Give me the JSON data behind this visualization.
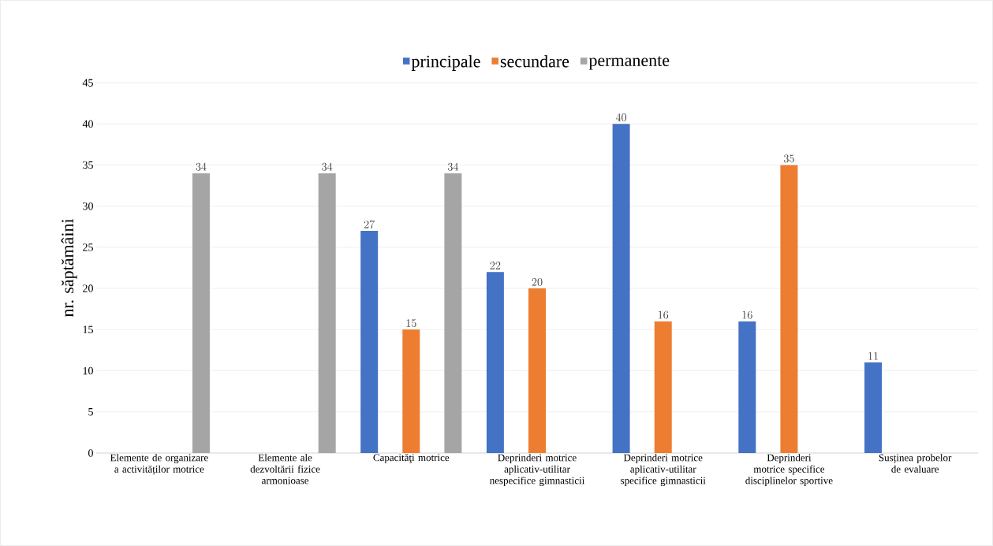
{
  "chart_data": {
    "type": "bar",
    "ylabel": "nr. săptămâini",
    "categories": [
      "Elemente de organizare a activităților motrice",
      "Elemente ale dezvoltării fizice armonioase",
      "Capacităţi motrice",
      "Deprinderi motrice aplicativ-utilitar nespecifice gimnasticii",
      "Deprinderi motrice aplicativ-utilitar specifice gimnasticii",
      "Deprinderi motrice specifice disciplinelor sportive",
      "Susținea probelor de evaluare"
    ],
    "series": [
      {
        "name": "principale",
        "color": "#4472c4",
        "values": [
          null,
          null,
          27,
          22,
          40,
          16,
          11
        ]
      },
      {
        "name": "secundare",
        "color": "#ed7d31",
        "values": [
          null,
          null,
          15,
          20,
          16,
          35,
          null
        ]
      },
      {
        "name": "permanente",
        "color": "#a5a5a5",
        "values": [
          34,
          34,
          34,
          null,
          null,
          null,
          null
        ]
      }
    ],
    "ylim": [
      0,
      45
    ],
    "yticks": [
      0,
      5,
      10,
      15,
      20,
      25,
      30,
      35,
      40,
      45
    ],
    "grid": "y",
    "legend": "top",
    "data_labels": true
  }
}
